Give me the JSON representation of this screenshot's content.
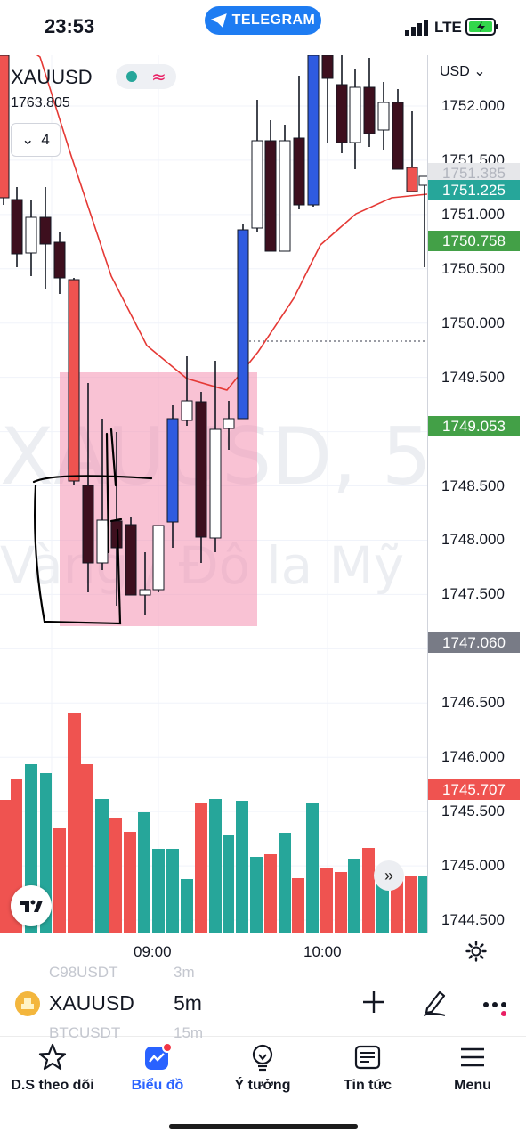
{
  "status_bar": {
    "time": "23:53",
    "pill": "TELEGRAM",
    "network": "LTE"
  },
  "chart": {
    "symbol": "XAUUSD",
    "last_price": "1763.805",
    "indicator_count": "4",
    "currency_select": "USD",
    "watermark_line1": "XAUUSD, 5",
    "watermark_line2": "Vàng / Đô la Mỹ",
    "price_ticks": [
      "1752.000",
      "1751.500",
      "1751.000",
      "1750.500",
      "1750.000",
      "1749.500",
      "1748.500",
      "1748.000",
      "1747.500",
      "1746.500",
      "1746.000",
      "1745.500",
      "1745.000",
      "1744.500"
    ],
    "price_tags": [
      {
        "label": "1751.385",
        "color": "#e6e7ea"
      },
      {
        "label": "1751.225",
        "color": "#26a69a"
      },
      {
        "label": "1750.758",
        "color": "#43a047"
      },
      {
        "label": "1749.053",
        "color": "#43a047"
      },
      {
        "label": "1747.060",
        "color": "#787b86"
      },
      {
        "label": "1745.707",
        "color": "#ef5350"
      }
    ],
    "time_labels": [
      "09:00",
      "10:00"
    ],
    "colors": {
      "up": "#26a69a",
      "down": "#ef5350",
      "highlight_zone": "#f48fb1",
      "blue_candle": "#2f5be0",
      "dark_candle": "#3d0f1e",
      "ma_line": "#e53935"
    }
  },
  "toolbar": {
    "symbol": "XAUUSD",
    "interval": "5m",
    "ghost_rows": [
      {
        "symbol": "C98USDT",
        "interval": "3m"
      },
      {
        "symbol": "BTCUSDT",
        "interval": "15m"
      }
    ]
  },
  "bottom_nav": [
    {
      "label": "D.S theo dõi",
      "icon": "star-icon"
    },
    {
      "label": "Biểu đồ",
      "icon": "chart-icon"
    },
    {
      "label": "Ý tưởng",
      "icon": "lightbulb-icon"
    },
    {
      "label": "Tin tức",
      "icon": "news-icon"
    },
    {
      "label": "Menu",
      "icon": "menu-icon"
    }
  ]
}
